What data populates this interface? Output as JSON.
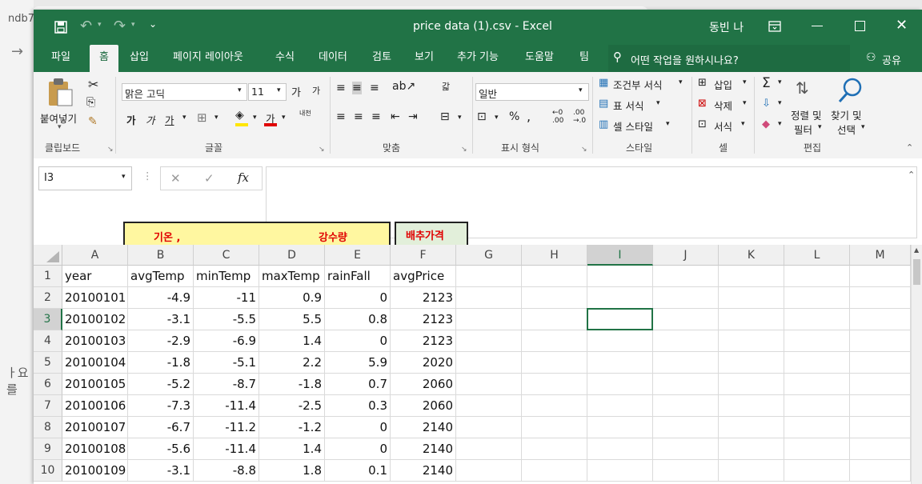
{
  "background": {
    "left_text": "ndb7",
    "arrow": "→",
    "bottom_text": "ㅏ요를"
  },
  "titlebar": {
    "doc_title": "price data (1).csv  -  Excel",
    "user": "동빈 나",
    "qat": {
      "save": "save-icon",
      "undo": "↶",
      "redo": "↷",
      "customize": "⌄"
    }
  },
  "tabs": [
    "파일",
    "홈",
    "삽입",
    "페이지 레이아웃",
    "수식",
    "데이터",
    "검토",
    "보기",
    "추가 기능",
    "도움말",
    "팀"
  ],
  "tell_me": "어떤 작업을 원하시나요?",
  "share": "공유",
  "ribbon": {
    "clipboard": {
      "paste": "붙여넣기",
      "label": "클립보드"
    },
    "font": {
      "name": "맑은 고딕",
      "size": "11",
      "grow": "가",
      "shrink": "가",
      "bold": "가",
      "italic": "가",
      "underline": "가",
      "font_color_letter": "가",
      "phonetic": "내천",
      "label": "글꼴"
    },
    "alignment": {
      "label": "맞춤",
      "wrap": "갋"
    },
    "number": {
      "format": "일반",
      "percent": "%",
      "comma": ",",
      "label": "표시 형식"
    },
    "styles": {
      "conditional": "조건부 서식",
      "table": "표 서식",
      "cell_styles": "셀 스타일",
      "label": "스타일"
    },
    "cells": {
      "insert": "삽입",
      "delete": "삭제",
      "format": "서식",
      "label": "셀"
    },
    "editing": {
      "sort_filter_1": "정렬 및",
      "sort_filter_2": "필터",
      "find_select_1": "찾기 및",
      "find_select_2": "선택",
      "sum": "Σ",
      "label": "편집"
    }
  },
  "formula_bar": {
    "name_box": "I3",
    "fx": "fx",
    "cancel": "✕",
    "enter": "✓",
    "value": ""
  },
  "annotations": [
    {
      "text": "기온 ,"
    },
    {
      "text": "강수량"
    },
    {
      "text": "배추가격"
    }
  ],
  "columns": [
    "A",
    "B",
    "C",
    "D",
    "E",
    "F",
    "G",
    "H",
    "I",
    "J",
    "K",
    "L",
    "M"
  ],
  "selected_column": "I",
  "selected_row": 3,
  "headers": [
    "year",
    "avgTemp",
    "minTemp",
    "maxTemp",
    "rainFall",
    "avgPrice"
  ],
  "rows": [
    [
      "20100101",
      "-4.9",
      "-11",
      "0.9",
      "0",
      "2123"
    ],
    [
      "20100102",
      "-3.1",
      "-5.5",
      "5.5",
      "0.8",
      "2123"
    ],
    [
      "20100103",
      "-2.9",
      "-6.9",
      "1.4",
      "0",
      "2123"
    ],
    [
      "20100104",
      "-1.8",
      "-5.1",
      "2.2",
      "5.9",
      "2020"
    ],
    [
      "20100105",
      "-5.2",
      "-8.7",
      "-1.8",
      "0.7",
      "2060"
    ],
    [
      "20100106",
      "-7.3",
      "-11.4",
      "-2.5",
      "0.3",
      "2060"
    ],
    [
      "20100107",
      "-6.7",
      "-11.2",
      "-1.2",
      "0",
      "2140"
    ],
    [
      "20100108",
      "-5.6",
      "-11.4",
      "1.4",
      "0",
      "2140"
    ],
    [
      "20100109",
      "-3.1",
      "-8.8",
      "1.8",
      "0.1",
      "2140"
    ]
  ],
  "colors": {
    "excel_green": "#217346",
    "annotation_yellow": "#fff7a0",
    "annotation_green": "#e2efda",
    "annotation_text": "#e00000"
  }
}
